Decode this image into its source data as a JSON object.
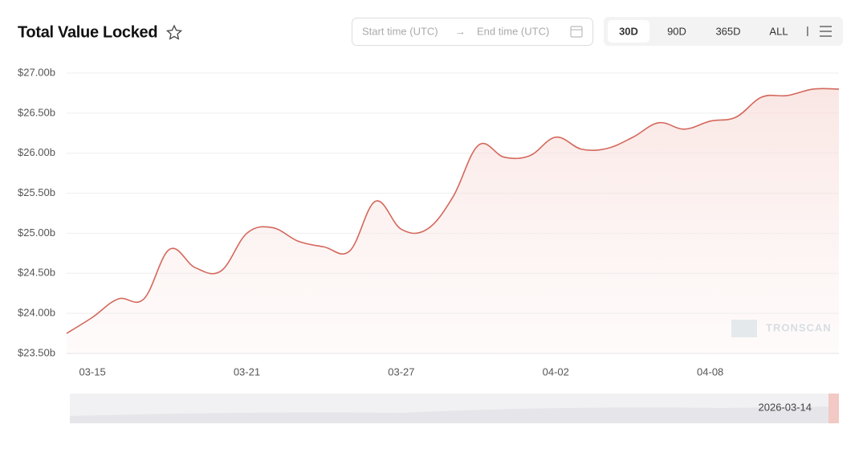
{
  "chart_data": {
    "type": "line",
    "title": "Total Value Locked",
    "categories": [
      null,
      "03-15",
      null,
      null,
      null,
      null,
      null,
      "03-21",
      null,
      null,
      null,
      null,
      null,
      "03-27",
      null,
      null,
      null,
      null,
      null,
      "04-02",
      null,
      null,
      null,
      null,
      null,
      "04-08",
      null,
      null,
      null,
      null,
      null
    ],
    "series": [
      {
        "color": "#d4685c",
        "values": [
          23.75,
          23.95,
          24.18,
          24.18,
          24.8,
          24.57,
          24.53,
          25.0,
          25.07,
          24.9,
          24.83,
          24.78,
          25.4,
          25.05,
          25.05,
          25.45,
          26.1,
          25.95,
          25.97,
          26.2,
          26.05,
          26.06,
          26.2,
          26.38,
          26.3,
          26.4,
          26.45,
          26.7,
          26.72,
          26.8,
          26.8
        ]
      }
    ],
    "ylim": [
      23.5,
      27.0
    ],
    "yticks": [
      {
        "value": 23.5,
        "label": "$23.50b"
      },
      {
        "value": 24.0,
        "label": "$24.00b"
      },
      {
        "value": 24.5,
        "label": "$24.50b"
      },
      {
        "value": 25.0,
        "label": "$25.00b"
      },
      {
        "value": 25.5,
        "label": "$25.50b"
      },
      {
        "value": 26.0,
        "label": "$26.00b"
      },
      {
        "value": 26.5,
        "label": "$26.50b"
      },
      {
        "value": 27.0,
        "label": "$27.00b"
      }
    ],
    "grid": true,
    "watermark": "TRONSCAN",
    "slider_label": "2026-03-14"
  },
  "controls": {
    "start_placeholder": "Start time (UTC)",
    "arrow": "→",
    "end_placeholder": "End time (UTC)",
    "ranges": [
      "30D",
      "90D",
      "365D",
      "ALL"
    ],
    "separator": "|",
    "active_range": 0
  }
}
